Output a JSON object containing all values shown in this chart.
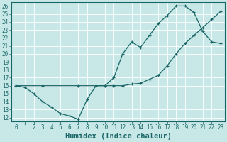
{
  "xlabel": "Humidex (Indice chaleur)",
  "xlim": [
    -0.5,
    23.5
  ],
  "ylim": [
    11.5,
    26.5
  ],
  "xticks": [
    0,
    1,
    2,
    3,
    4,
    5,
    6,
    7,
    8,
    9,
    10,
    11,
    12,
    13,
    14,
    15,
    16,
    17,
    18,
    19,
    20,
    21,
    22,
    23
  ],
  "yticks": [
    12,
    13,
    14,
    15,
    16,
    17,
    18,
    19,
    20,
    21,
    22,
    23,
    24,
    25,
    26
  ],
  "bg_color": "#c8e8e8",
  "line_color": "#1a6666",
  "line1_x": [
    0,
    1,
    2,
    3,
    4,
    5,
    6,
    7,
    8,
    9,
    10,
    11,
    12,
    13,
    14,
    15,
    16,
    17,
    18,
    19,
    20,
    21,
    22,
    23
  ],
  "line1_y": [
    16,
    15.8,
    15,
    14,
    13.3,
    12.5,
    12.2,
    11.8,
    14.3,
    16.0,
    16.0,
    17.0,
    20.0,
    21.5,
    20.8,
    22.3,
    23.8,
    24.8,
    26.0,
    26.0,
    25.2,
    22.8,
    21.5,
    21.3
  ],
  "line2_x": [
    0,
    3,
    7,
    10,
    11,
    12,
    13,
    14,
    15,
    16,
    17,
    18,
    19,
    20,
    21,
    22,
    23
  ],
  "line2_y": [
    16,
    16.0,
    16.0,
    16.0,
    16.0,
    16.0,
    16.2,
    16.3,
    16.8,
    17.3,
    18.5,
    20.0,
    21.3,
    22.3,
    23.3,
    24.3,
    25.3
  ],
  "grid_color": "#ffffff",
  "tick_fontsize": 5.5,
  "xlabel_fontsize": 7.5
}
